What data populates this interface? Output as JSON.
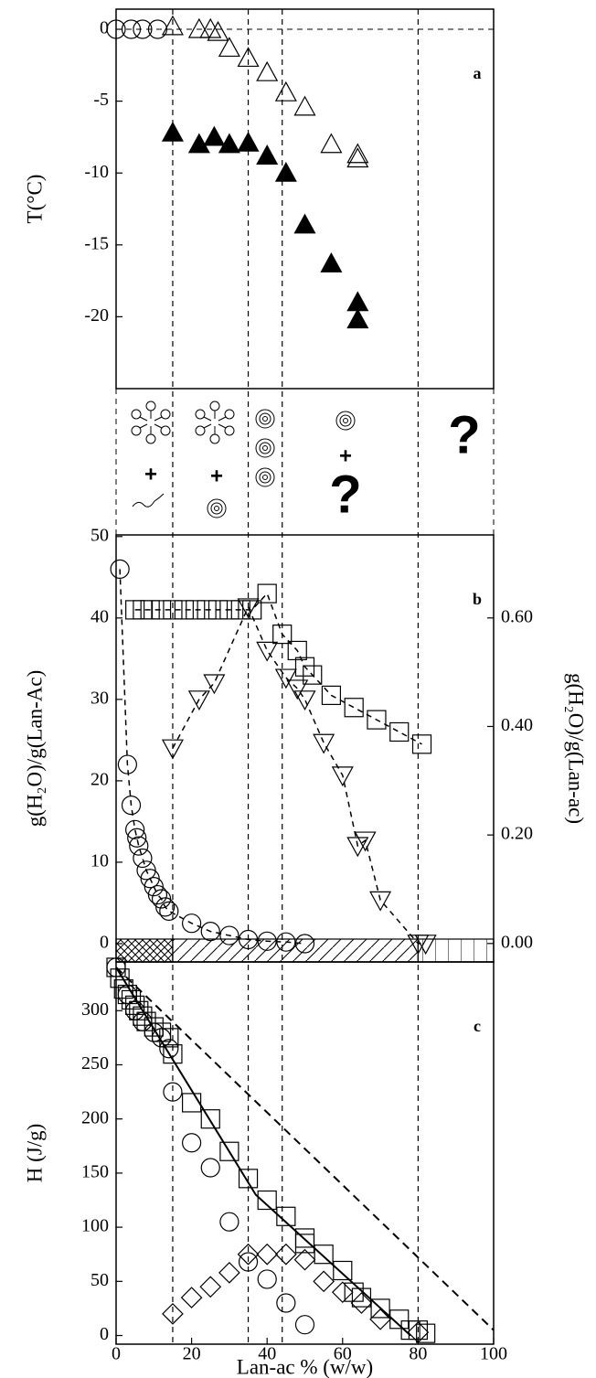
{
  "reference_x": [
    15,
    35,
    44,
    80
  ],
  "schematic": {
    "labels": [
      "+",
      "+",
      "+",
      "?",
      "?"
    ]
  },
  "chart_data": [
    {
      "type": "scatter",
      "panel": "a",
      "ylabel": "T(°C)",
      "xlim": [
        0,
        100
      ],
      "ylim": [
        -25,
        1.4
      ],
      "yticks": [
        0,
        -5,
        -10,
        -15,
        -20
      ],
      "hline": 0,
      "series": [
        {
          "marker": "circle",
          "color": "#000",
          "fill": "none",
          "x": [
            0,
            4,
            7,
            11
          ],
          "values": [
            0,
            0,
            0,
            0
          ]
        },
        {
          "marker": "triangle",
          "color": "#000",
          "fill": "none",
          "x": [
            15,
            22,
            25,
            27,
            30,
            35,
            40,
            45,
            50,
            57,
            64,
            64
          ],
          "values": [
            0.2,
            0,
            0,
            -0.2,
            -1.3,
            -2,
            -3,
            -4.4,
            -5.4,
            -8,
            -8.7,
            -9
          ]
        },
        {
          "marker": "triangle",
          "color": "#000",
          "fill": "#000",
          "x": [
            15,
            22,
            26,
            30,
            35,
            40,
            45,
            50,
            57,
            64,
            64
          ],
          "values": [
            -7.2,
            -8,
            -7.5,
            -8,
            -7.9,
            -8.8,
            -10,
            -13.6,
            -16.3,
            -19,
            -20.2
          ]
        }
      ]
    },
    {
      "type": "scatter",
      "panel": "b",
      "ylabel": "g(H₂O)/g(Lan-Ac)",
      "y2label": "g(H₂O)/g(Lan-ac)",
      "xlim": [
        0,
        100
      ],
      "ylim": [
        -2.25,
        50.2
      ],
      "yticks": [
        0,
        10,
        20,
        30,
        40,
        50
      ],
      "y2lim": [
        -0.034,
        0.753
      ],
      "y2ticks": [
        {
          "value": 0,
          "label": "0.00"
        },
        {
          "value": 0.2,
          "label": "0.20"
        },
        {
          "value": 0.4,
          "label": "0.40"
        },
        {
          "value": 0.6,
          "label": "0.60"
        }
      ],
      "bands": [
        {
          "from": 0,
          "to": 15,
          "pattern": "crosshatch"
        },
        {
          "from": 15,
          "to": 80,
          "pattern": "diagonal"
        },
        {
          "from": 80,
          "to": 100,
          "pattern": "grid"
        }
      ],
      "series": [
        {
          "marker": "circle",
          "color": "#000",
          "fill": "none",
          "line": "dashed",
          "x": [
            1,
            3,
            4,
            5,
            5.5,
            6,
            7,
            8,
            9,
            10,
            11,
            12,
            13,
            14,
            20,
            25,
            30,
            35,
            40,
            45,
            50
          ],
          "values": [
            46,
            22,
            17,
            14,
            13,
            12,
            10.5,
            9,
            8,
            7,
            6,
            5.5,
            4.5,
            4,
            2.5,
            1.5,
            1,
            0.5,
            0.3,
            0.2,
            0
          ]
        },
        {
          "marker": "square",
          "color": "#000",
          "fill": "none",
          "line": "dashed",
          "x": [
            5,
            7,
            9,
            12,
            15,
            18,
            21,
            24,
            27,
            30,
            33,
            36,
            40,
            44,
            48,
            50,
            52,
            57,
            63,
            69,
            75,
            81
          ],
          "values": [
            41,
            41,
            41,
            41,
            41,
            41,
            41,
            41,
            41,
            41,
            41,
            41,
            43,
            38,
            36,
            34,
            33,
            30.5,
            29,
            27.5,
            26,
            24.5
          ]
        },
        {
          "marker": "triangle-down",
          "color": "#000",
          "fill": "none",
          "line": "dashed",
          "axis": "y2",
          "x": [
            15,
            22,
            26,
            35,
            40,
            45,
            48,
            50,
            55,
            60,
            64,
            66,
            70,
            80,
            82
          ],
          "values": [
            0.36,
            0.45,
            0.48,
            0.62,
            0.54,
            0.49,
            0.47,
            0.45,
            0.37,
            0.31,
            0.18,
            0.19,
            0.08,
            0,
            0
          ]
        }
      ]
    },
    {
      "type": "scatter",
      "panel": "c",
      "ylabel": "H (J/g)",
      "xlabel": "Lan-ac % (w/w)",
      "xlim": [
        0,
        100
      ],
      "ylim": [
        -8,
        345
      ],
      "yticks": [
        0,
        50,
        100,
        150,
        200,
        250,
        300
      ],
      "xticks": [
        0,
        20,
        40,
        60,
        80,
        100
      ],
      "lines": [
        {
          "style": "solid",
          "x": [
            0,
            37,
            78
          ],
          "values": [
            340,
            130,
            0
          ]
        },
        {
          "style": "dashed",
          "x": [
            0,
            100
          ],
          "values": [
            340,
            5
          ]
        }
      ],
      "series": [
        {
          "marker": "square",
          "color": "#000",
          "fill": "none",
          "x": [
            0,
            1,
            2,
            3,
            4,
            5,
            6,
            7,
            8,
            10,
            12,
            14,
            15,
            20,
            25,
            30,
            35,
            40,
            45,
            50,
            50,
            55,
            60,
            63,
            65,
            70,
            75,
            78,
            80,
            82
          ],
          "values": [
            340,
            330,
            320,
            315,
            310,
            305,
            300,
            295,
            290,
            285,
            280,
            275,
            260,
            215,
            200,
            170,
            145,
            125,
            110,
            90,
            85,
            75,
            60,
            40,
            35,
            25,
            15,
            5,
            5,
            2
          ]
        },
        {
          "marker": "circle",
          "color": "#000",
          "fill": "none",
          "x": [
            0,
            3,
            5,
            7,
            10,
            12,
            14,
            15,
            20,
            25,
            30,
            35,
            40,
            45,
            50
          ],
          "values": [
            340,
            315,
            300,
            290,
            280,
            275,
            265,
            225,
            178,
            155,
            105,
            68,
            52,
            30,
            10
          ]
        },
        {
          "marker": "diamond",
          "color": "#000",
          "fill": "none",
          "x": [
            15,
            20,
            25,
            30,
            35,
            40,
            45,
            50,
            55,
            60,
            65,
            70,
            80
          ],
          "values": [
            20,
            35,
            45,
            58,
            75,
            75,
            75,
            70,
            50,
            40,
            30,
            15,
            3
          ]
        }
      ]
    }
  ]
}
